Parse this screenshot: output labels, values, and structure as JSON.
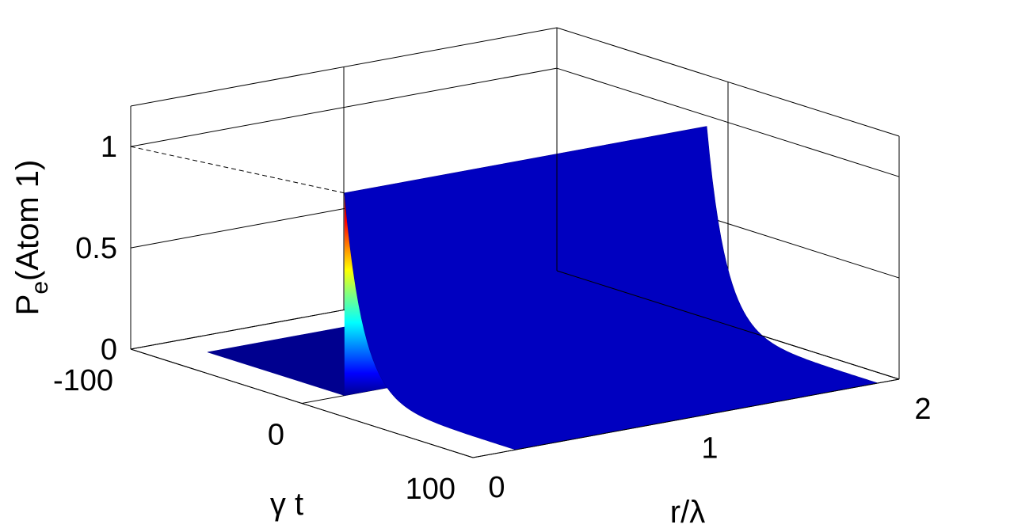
{
  "chart_data": {
    "type": "surface",
    "title": "",
    "xlabel": "r/λ",
    "ylabel": "γ t",
    "zlabel_main": "P",
    "zlabel_sub": "e",
    "zlabel_rest": "(Atom 1)",
    "xlim": [
      0,
      2
    ],
    "ylim": [
      -100,
      100
    ],
    "zlim": [
      0,
      1.2
    ],
    "x_ticks": [
      "0",
      "1",
      "2"
    ],
    "y_ticks": [
      "-100",
      "0",
      "100"
    ],
    "z_ticks": [
      "0",
      "0.5",
      "1"
    ],
    "grid": true,
    "colormap": "jet",
    "surface": {
      "r_range": [
        0.2,
        1.9
      ],
      "t_range": [
        -80,
        100
      ],
      "peak_t": 0,
      "peak_value": 1.0,
      "baseline": 0.0,
      "description_shape": "sharp ridge at t = 0 with exponential decay for t > 0"
    }
  }
}
